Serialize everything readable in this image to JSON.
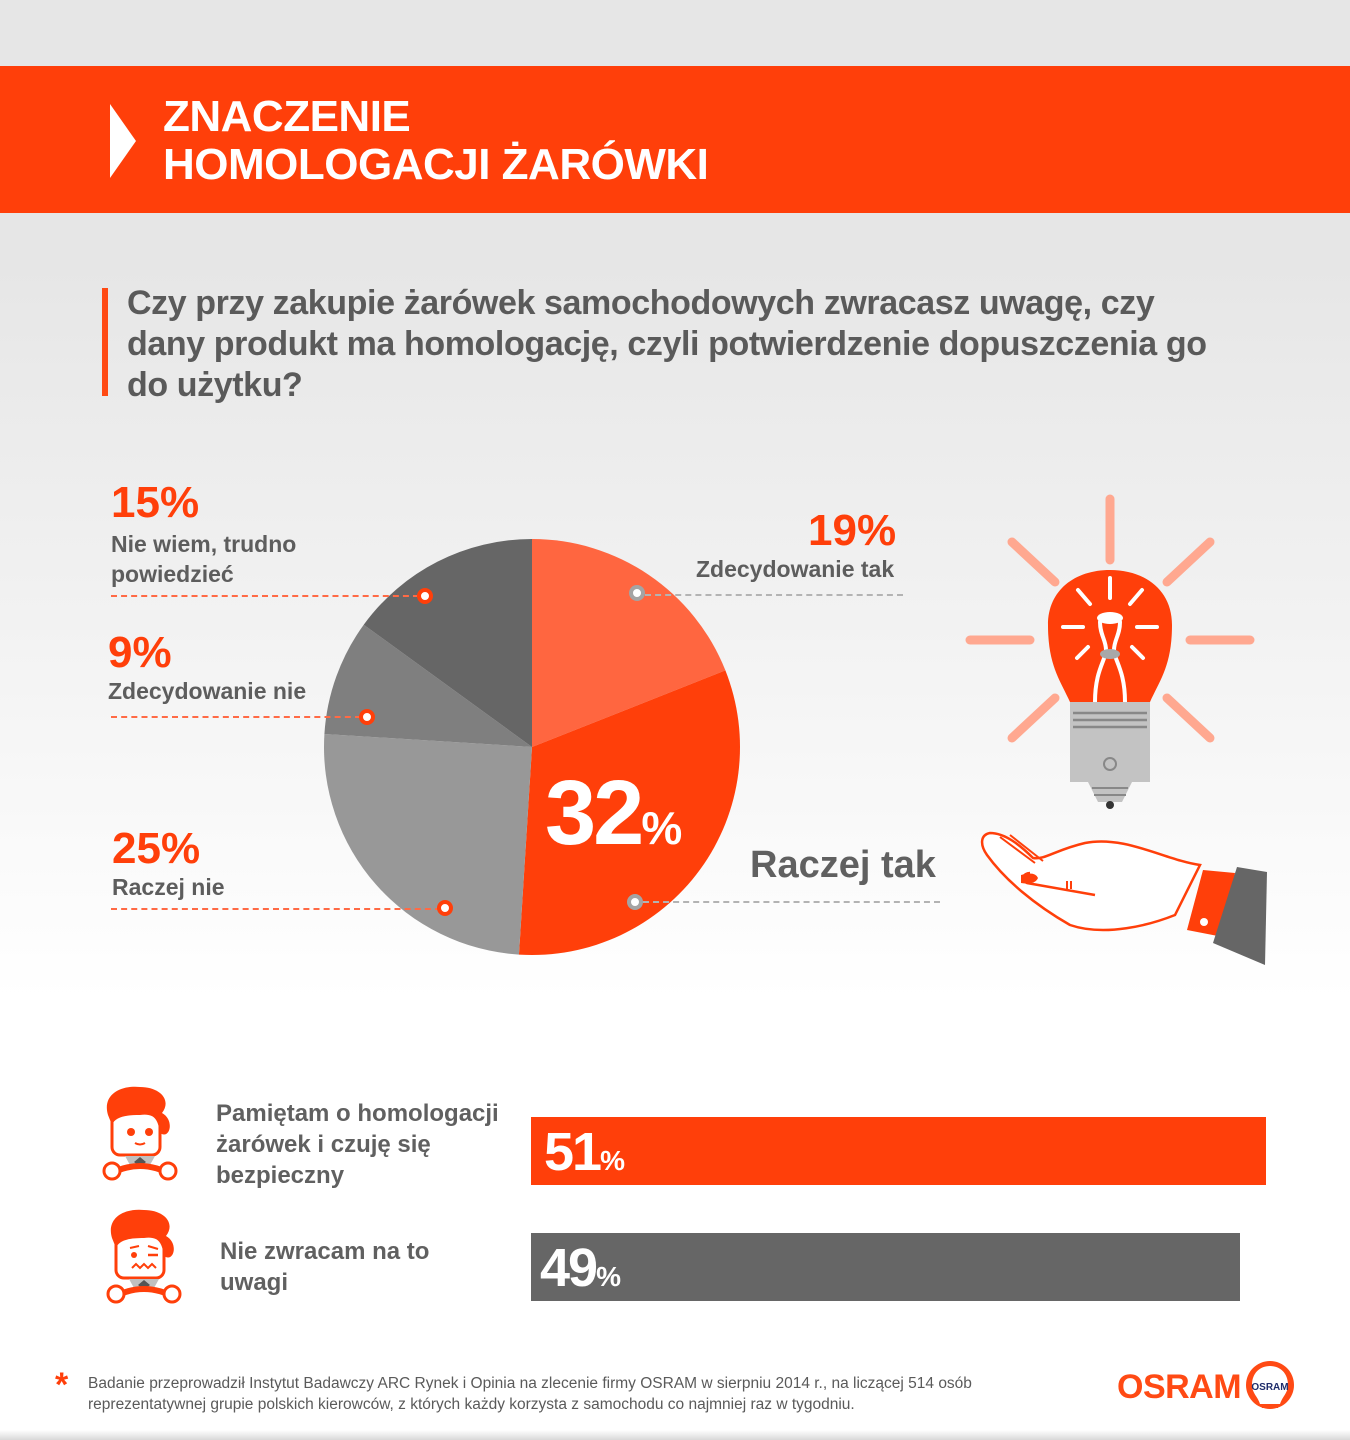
{
  "header": {
    "title_line1": "ZNACZENIE",
    "title_line2": "HOMOLOGACJI ŻARÓWKI"
  },
  "question": {
    "text": "Czy przy zakupie żarówek samochodowych zwracasz uwagę, czy dany produkt ma homologację, czyli potwierdzenie dopuszczenia go do użytku?"
  },
  "pie": {
    "slices": [
      {
        "key": "zdecydowanie_tak",
        "pct": "19%",
        "label": "Zdecydowanie tak",
        "value": 19,
        "color": "#ff6640"
      },
      {
        "key": "raczej_tak",
        "pct": "32",
        "pct_sign": "%",
        "label": "Raczej tak",
        "value": 32,
        "color": "#ff3f0a"
      },
      {
        "key": "raczej_nie",
        "pct": "25%",
        "label": "Raczej nie",
        "value": 25,
        "color": "#989898"
      },
      {
        "key": "zdecydowanie_nie",
        "pct": "9%",
        "label": "Zdecydowanie nie",
        "value": 9,
        "color": "#7f7f7f"
      },
      {
        "key": "nie_wiem",
        "pct": "15%",
        "label_line1": "Nie wiem, trudno",
        "label_line2": "powiedzieć",
        "value": 15,
        "color": "#666666"
      }
    ]
  },
  "bars": [
    {
      "label_line1": "Pamiętam o homologacji",
      "label_line2": "żarówek i czuję się",
      "label_line3": "bezpieczny",
      "value": "51",
      "pct_sign": "%",
      "color": "#ff3f0a",
      "mood": "happy-driver"
    },
    {
      "label_line1": "Nie zwracam na to",
      "label_line2": "uwagi",
      "value": "49",
      "pct_sign": "%",
      "color": "#666666",
      "mood": "worried-driver"
    }
  ],
  "footnote": {
    "asterisk": "*",
    "line1": "Badanie przeprowadził Instytut Badawczy ARC Rynek i Opinia na zlecenie firmy OSRAM w sierpniu 2014 r., na liczącej 514 osób",
    "line2": "reprezentatywnej grupie polskich kierowców, z których każdy korzysta z samochodu co najmniej raz w tygodniu."
  },
  "brand": {
    "name": "OSRAM",
    "badge_text": "OSRAM",
    "accent": "#ff3f0a",
    "badge_text_color": "#1f2d6b"
  },
  "chart_data": [
    {
      "type": "pie",
      "title": "Czy przy zakupie żarówek samochodowych zwracasz uwagę, czy dany produkt ma homologację, czyli potwierdzenie dopuszczenia go do użytku?",
      "categories": [
        "Zdecydowanie tak",
        "Raczej tak",
        "Raczej nie",
        "Zdecydowanie nie",
        "Nie wiem, trudno powiedzieć"
      ],
      "values": [
        19,
        32,
        25,
        9,
        15
      ],
      "colors": [
        "#ff6640",
        "#ff3f0a",
        "#989898",
        "#7f7f7f",
        "#666666"
      ],
      "unit": "%"
    },
    {
      "type": "bar",
      "orientation": "horizontal",
      "categories": [
        "Pamiętam o homologacji żarówek i czuję się bezpieczny",
        "Nie zwracam na to uwagi"
      ],
      "values": [
        51,
        49
      ],
      "colors": [
        "#ff3f0a",
        "#666666"
      ],
      "unit": "%"
    }
  ]
}
